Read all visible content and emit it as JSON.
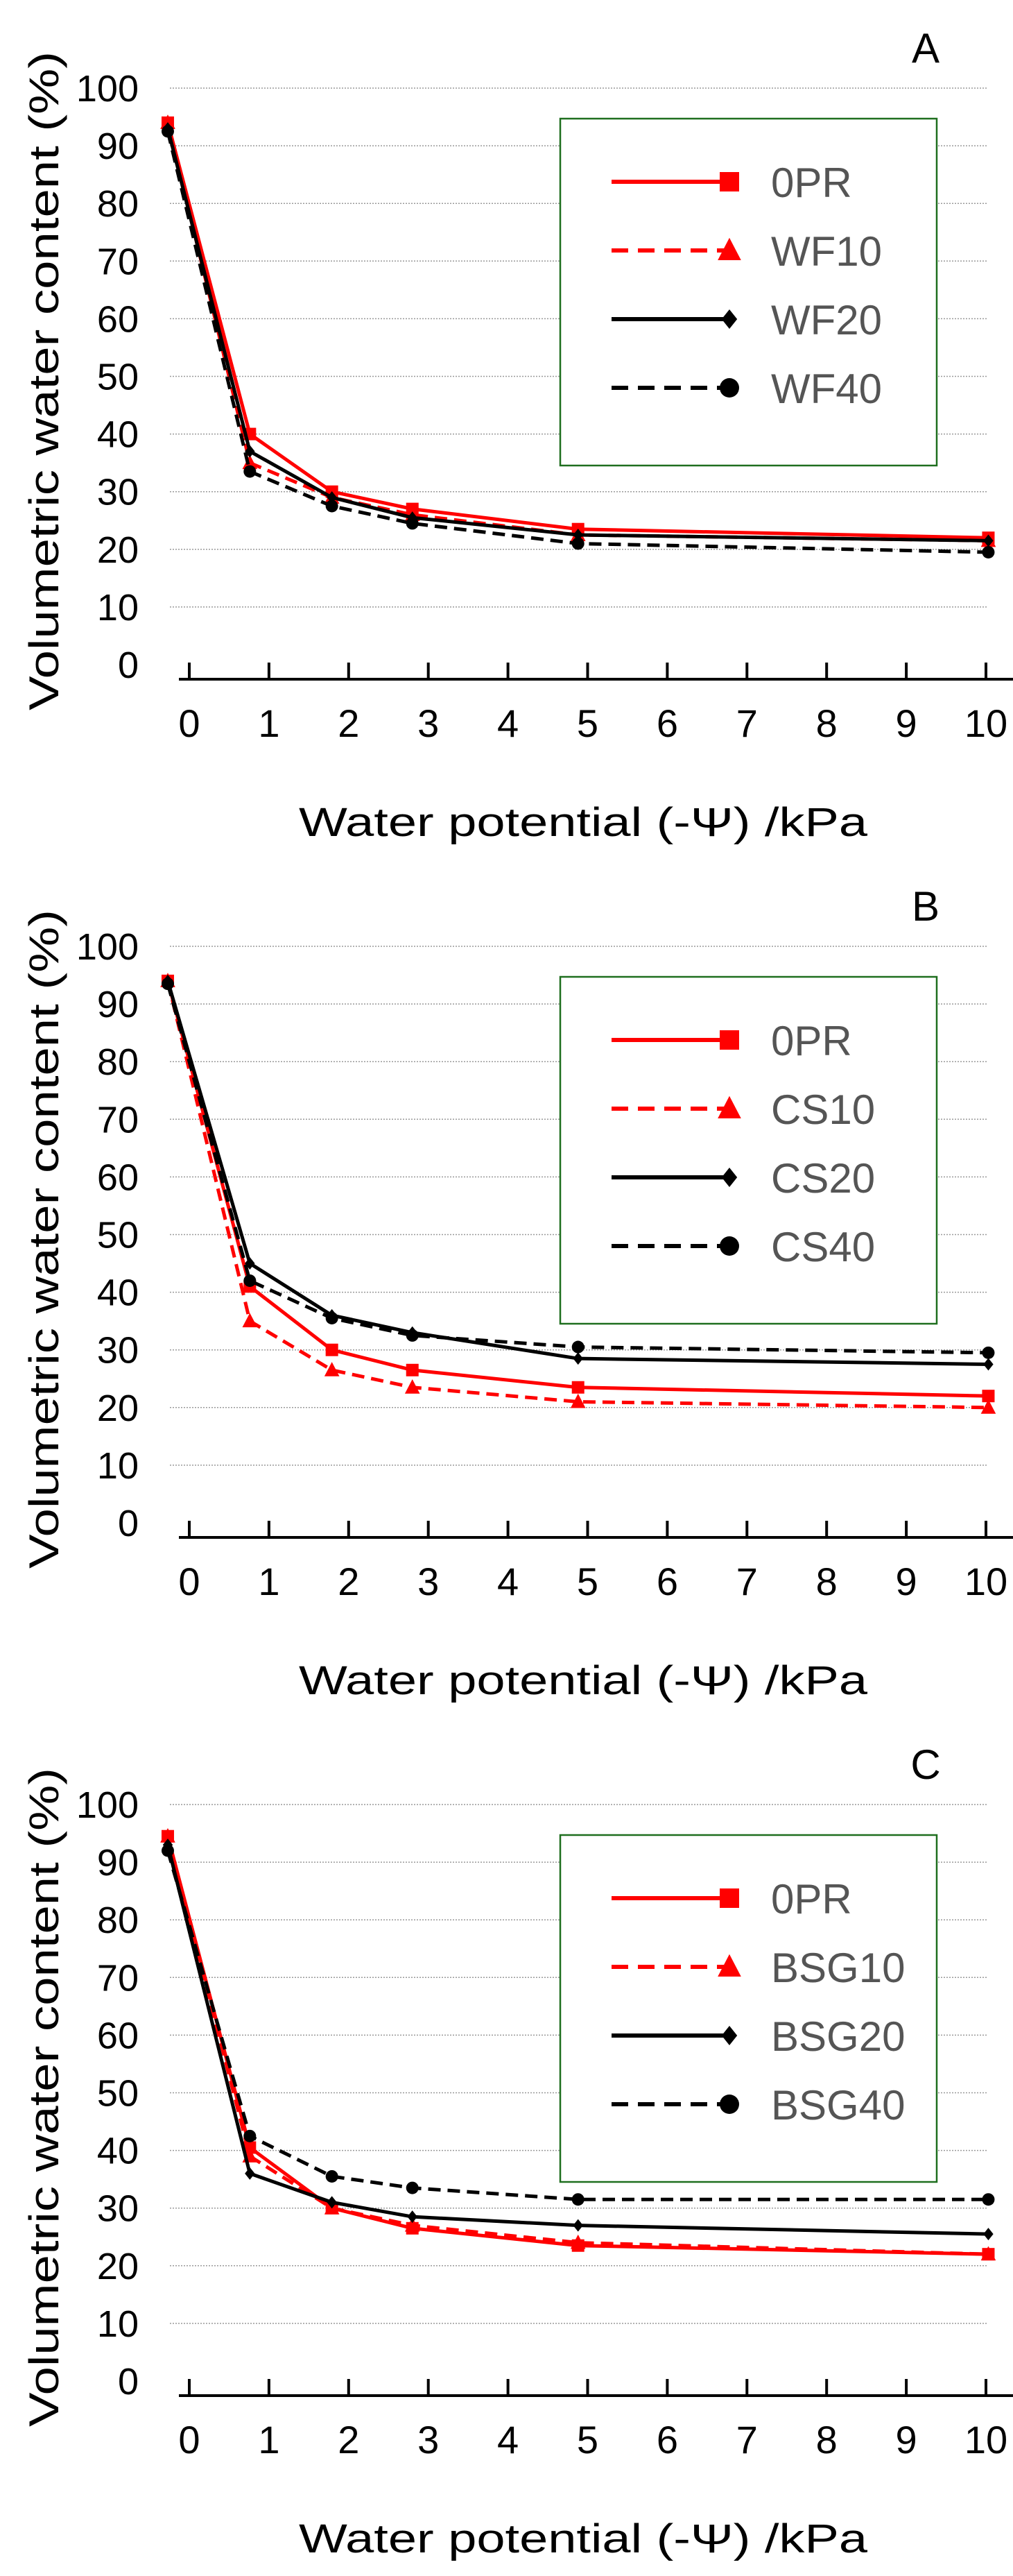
{
  "chart_data": [
    {
      "type": "line",
      "panel_label": "A",
      "xlabel": "Water potential (-Ψ) /kPa",
      "ylabel": "Volumetric  water content (%)",
      "xlim": [
        0,
        10
      ],
      "ylim": [
        0,
        100
      ],
      "xticks": [
        "0",
        "1",
        "2",
        "3",
        "4",
        "5",
        "6",
        "7",
        "8",
        "9",
        "10"
      ],
      "yticks": [
        "0",
        "10",
        "20",
        "30",
        "40",
        "50",
        "60",
        "70",
        "80",
        "90",
        "100"
      ],
      "grid": "horizontal dotted",
      "legend_position": "top-right",
      "x": [
        -0.27,
        0.76,
        1.79,
        2.8,
        4.88,
        10.03
      ],
      "series": [
        {
          "name": "0PR",
          "color": "#ff0000",
          "dash": false,
          "marker": "square",
          "values": [
            94,
            40,
            30,
            27,
            23.5,
            22
          ]
        },
        {
          "name": "WF10",
          "color": "#ff0000",
          "dash": true,
          "marker": "triangle",
          "values": [
            94,
            35,
            29,
            26,
            22.5,
            21.5
          ]
        },
        {
          "name": "WF20",
          "color": "#000000",
          "dash": false,
          "marker": "diamond",
          "values": [
            93,
            37,
            29,
            25.5,
            22.5,
            21.5
          ]
        },
        {
          "name": "WF40",
          "color": "#000000",
          "dash": true,
          "marker": "circle",
          "values": [
            92.5,
            33.5,
            27.5,
            24.5,
            21,
            19.5
          ]
        }
      ]
    },
    {
      "type": "line",
      "panel_label": "B",
      "xlabel": "Water potential (-Ψ) /kPa",
      "ylabel": "Volumetric  water content (%)",
      "xlim": [
        0,
        10
      ],
      "ylim": [
        0,
        100
      ],
      "xticks": [
        "0",
        "1",
        "2",
        "3",
        "4",
        "5",
        "6",
        "7",
        "8",
        "9",
        "10"
      ],
      "yticks": [
        "0",
        "10",
        "20",
        "30",
        "40",
        "50",
        "60",
        "70",
        "80",
        "90",
        "100"
      ],
      "grid": "horizontal dotted",
      "legend_position": "top-right",
      "x": [
        -0.27,
        0.76,
        1.79,
        2.8,
        4.88,
        10.03
      ],
      "series": [
        {
          "name": "0PR",
          "color": "#ff0000",
          "dash": false,
          "marker": "square",
          "values": [
            94,
            41,
            30,
            26.5,
            23.5,
            22
          ]
        },
        {
          "name": "CS10",
          "color": "#ff0000",
          "dash": true,
          "marker": "triangle",
          "values": [
            94,
            35,
            26.5,
            23.5,
            21,
            20
          ]
        },
        {
          "name": "CS20",
          "color": "#000000",
          "dash": false,
          "marker": "diamond",
          "values": [
            94,
            45,
            36,
            33,
            28.5,
            27.5
          ]
        },
        {
          "name": "CS40",
          "color": "#000000",
          "dash": true,
          "marker": "circle",
          "values": [
            93.5,
            42,
            35.5,
            32.5,
            30.5,
            29.5
          ]
        }
      ]
    },
    {
      "type": "line",
      "panel_label": "C",
      "xlabel": "Water potential (-Ψ) /kPa",
      "ylabel": "Volumetric  water content (%)",
      "xlim": [
        0,
        10
      ],
      "ylim": [
        0,
        100
      ],
      "xticks": [
        "0",
        "1",
        "2",
        "3",
        "4",
        "5",
        "6",
        "7",
        "8",
        "9",
        "10"
      ],
      "yticks": [
        "0",
        "10",
        "20",
        "30",
        "40",
        "50",
        "60",
        "70",
        "80",
        "90",
        "100"
      ],
      "grid": "horizontal dotted",
      "legend_position": "top-right",
      "x": [
        -0.27,
        0.76,
        1.79,
        2.8,
        4.88,
        10.03
      ],
      "series": [
        {
          "name": "0PR",
          "color": "#ff0000",
          "dash": false,
          "marker": "square",
          "values": [
            94.5,
            40.5,
            30,
            26.5,
            23.5,
            22
          ]
        },
        {
          "name": "BSG10",
          "color": "#ff0000",
          "dash": true,
          "marker": "triangle",
          "values": [
            94.5,
            39,
            30,
            27,
            24,
            22
          ]
        },
        {
          "name": "BSG20",
          "color": "#000000",
          "dash": false,
          "marker": "diamond",
          "values": [
            93,
            36,
            31,
            28.5,
            27,
            25.5
          ]
        },
        {
          "name": "BSG40",
          "color": "#000000",
          "dash": true,
          "marker": "circle",
          "values": [
            92,
            42.5,
            35.5,
            33.5,
            31.5,
            31.5
          ]
        }
      ]
    }
  ]
}
